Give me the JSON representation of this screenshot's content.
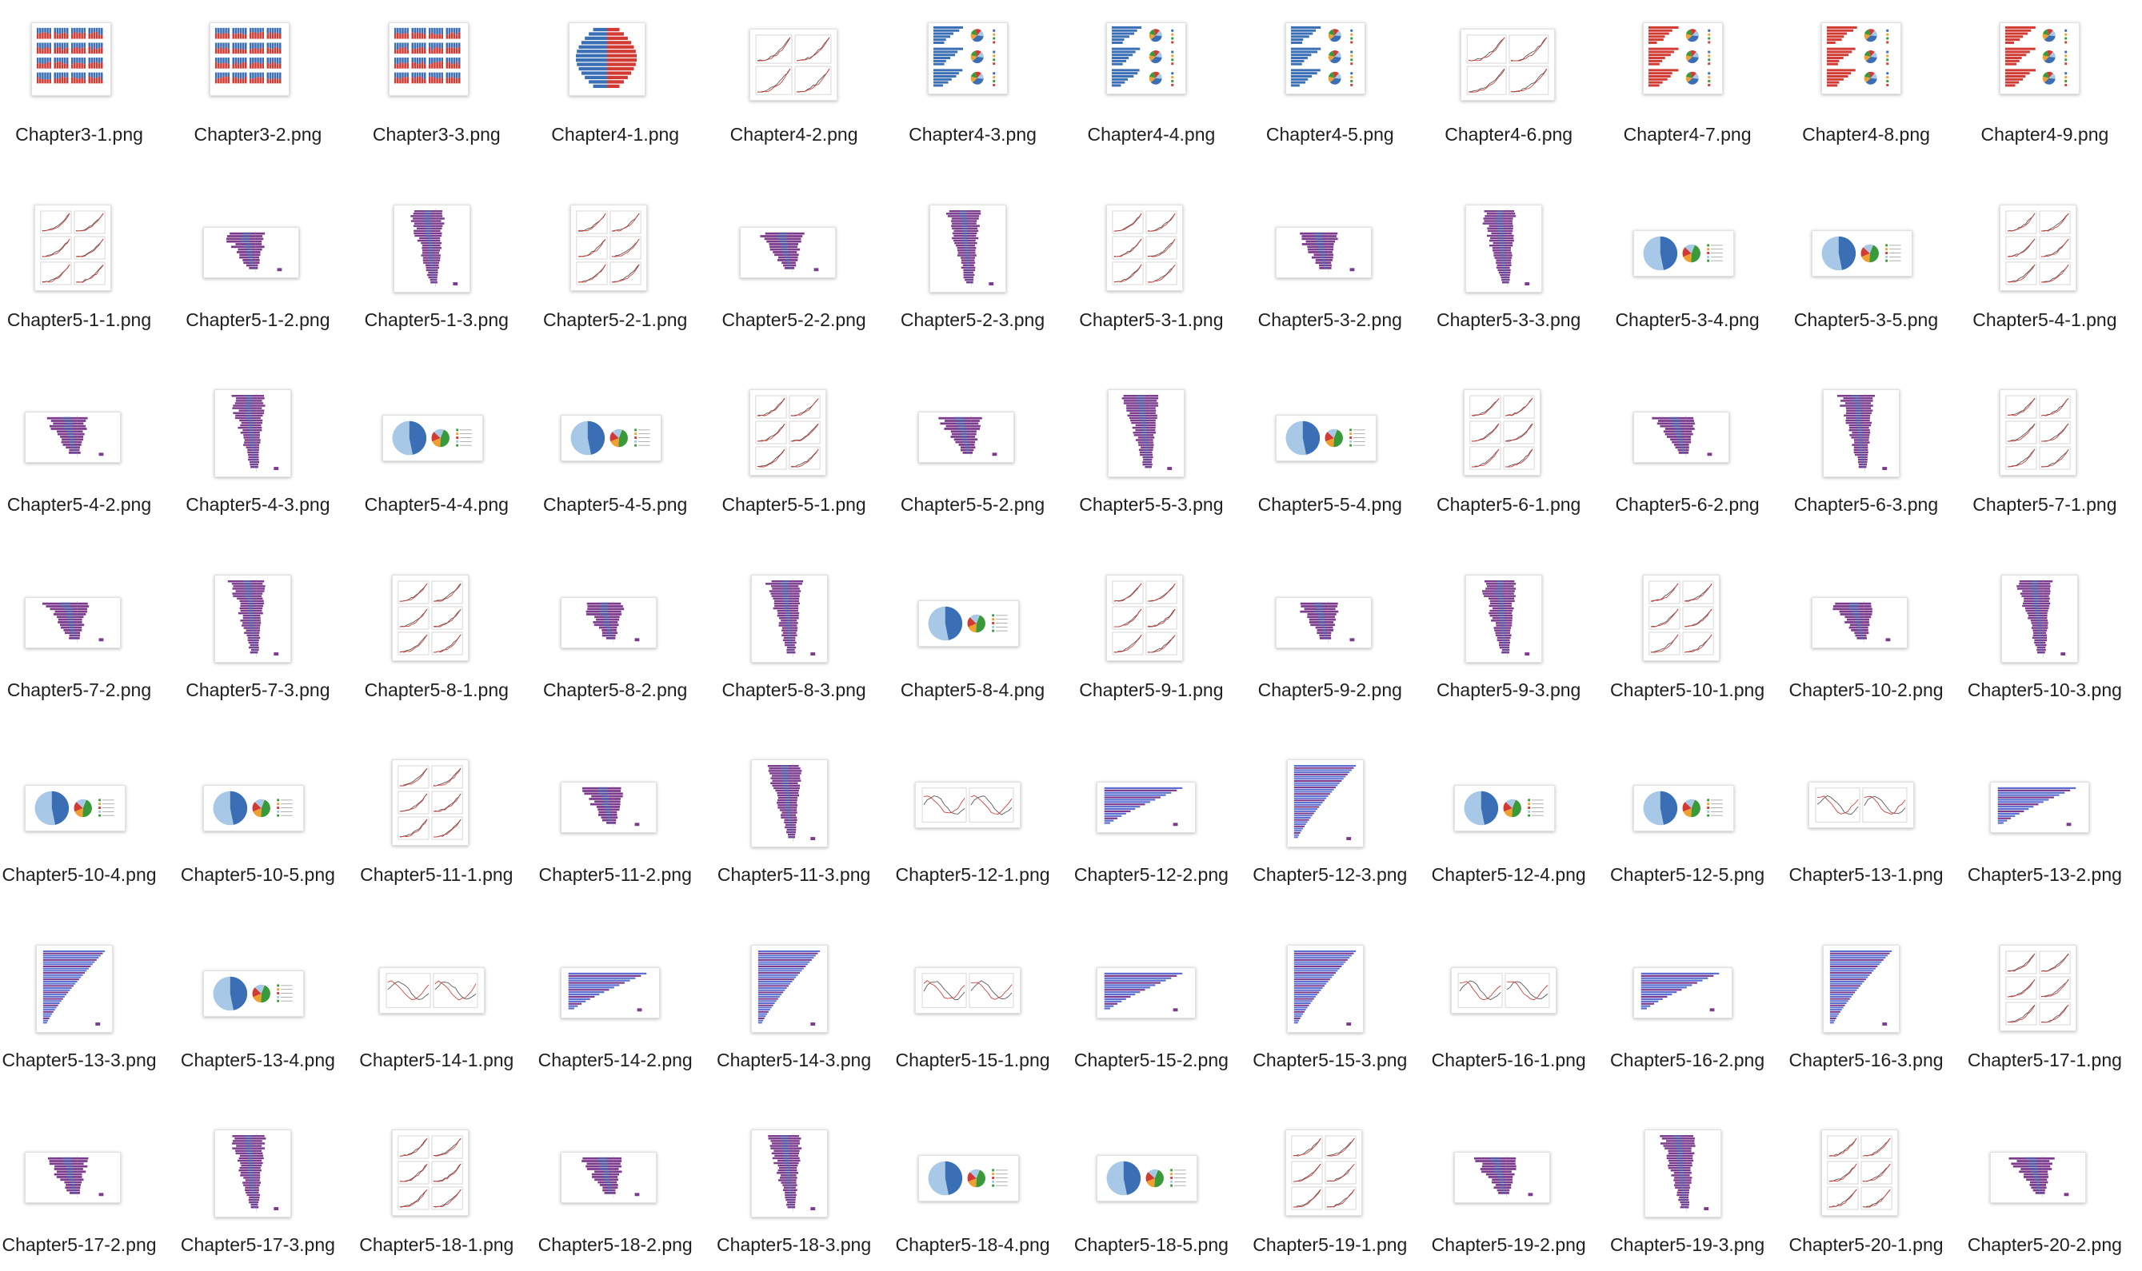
{
  "finder": {
    "files": [
      {
        "name": "Chapter3-1.png",
        "label": "Chapter3-1.png",
        "kind": "stacked"
      },
      {
        "name": "Chapter3-2.png",
        "label": "Chapter3-2.png",
        "kind": "stacked"
      },
      {
        "name": "Chapter3-3.png",
        "label": "Chapter3-3.png",
        "kind": "stacked"
      },
      {
        "name": "Chapter4-1.png",
        "label": "Chapter4-1.png",
        "kind": "pyramid-br"
      },
      {
        "name": "Chapter4-2.png",
        "label": "Chapter4-2.png",
        "kind": "lines4"
      },
      {
        "name": "Chapter4-3.png",
        "label": "Chapter4-3.png",
        "kind": "pie3-blue"
      },
      {
        "name": "Chapter4-4.png",
        "label": "Chapter4-4.png",
        "kind": "pie3-blue"
      },
      {
        "name": "Chapter4-5.png",
        "label": "Chapter4-5.png",
        "kind": "pie3-blue"
      },
      {
        "name": "Chapter4-6.png",
        "label": "Chapter4-6.png",
        "kind": "lines4wide"
      },
      {
        "name": "Chapter4-7.png",
        "label": "Chapter4-7.png",
        "kind": "pie3-red"
      },
      {
        "name": "Chapter4-8.png",
        "label": "Chapter4-8.png",
        "kind": "pie3-red"
      },
      {
        "name": "Chapter4-9.png",
        "label": "Chapter4-9.png",
        "kind": "pie3-red"
      },
      {
        "name": "Chapter5-1-1.png",
        "label": "Chapter5-1-1.png",
        "kind": "lines6"
      },
      {
        "name": "Chapter5-1-2.png",
        "label": "Chapter5-1-2.png",
        "kind": "pyrwide"
      },
      {
        "name": "Chapter5-1-3.png",
        "label": "Chapter5-1-3.png",
        "kind": "pyrtall"
      },
      {
        "name": "Chapter5-2-1.png",
        "label": "Chapter5-2-1.png",
        "kind": "lines6"
      },
      {
        "name": "Chapter5-2-2.png",
        "label": "Chapter5-2-2.png",
        "kind": "pyrwide"
      },
      {
        "name": "Chapter5-2-3.png",
        "label": "Chapter5-2-3.png",
        "kind": "pyrtall"
      },
      {
        "name": "Chapter5-3-1.png",
        "label": "Chapter5-3-1.png",
        "kind": "lines6"
      },
      {
        "name": "Chapter5-3-2.png",
        "label": "Chapter5-3-2.png",
        "kind": "pyrwide"
      },
      {
        "name": "Chapter5-3-3.png",
        "label": "Chapter5-3-3.png",
        "kind": "pyrtall"
      },
      {
        "name": "Chapter5-3-4.png",
        "label": "Chapter5-3-4.png",
        "kind": "pies2"
      },
      {
        "name": "Chapter5-3-5.png",
        "label": "Chapter5-3-5.png",
        "kind": "pies2"
      },
      {
        "name": "Chapter5-4-1.png",
        "label": "Chapter5-4-1.png",
        "kind": "lines6"
      },
      {
        "name": "Chapter5-4-2.png",
        "label": "Chapter5-4-2.png",
        "kind": "pyrwide"
      },
      {
        "name": "Chapter5-4-3.png",
        "label": "Chapter5-4-3.png",
        "kind": "pyrtall"
      },
      {
        "name": "Chapter5-4-4.png",
        "label": "Chapter5-4-4.png",
        "kind": "pies2"
      },
      {
        "name": "Chapter5-4-5.png",
        "label": "Chapter5-4-5.png",
        "kind": "pies2"
      },
      {
        "name": "Chapter5-5-1.png",
        "label": "Chapter5-5-1.png",
        "kind": "lines6"
      },
      {
        "name": "Chapter5-5-2.png",
        "label": "Chapter5-5-2.png",
        "kind": "pyrwide"
      },
      {
        "name": "Chapter5-5-3.png",
        "label": "Chapter5-5-3.png",
        "kind": "pyrtall"
      },
      {
        "name": "Chapter5-5-4.png",
        "label": "Chapter5-5-4.png",
        "kind": "pies2"
      },
      {
        "name": "Chapter5-6-1.png",
        "label": "Chapter5-6-1.png",
        "kind": "lines6"
      },
      {
        "name": "Chapter5-6-2.png",
        "label": "Chapter5-6-2.png",
        "kind": "pyrwide"
      },
      {
        "name": "Chapter5-6-3.png",
        "label": "Chapter5-6-3.png",
        "kind": "pyrtall"
      },
      {
        "name": "Chapter5-7-1.png",
        "label": "Chapter5-7-1.png",
        "kind": "lines6"
      },
      {
        "name": "Chapter5-7-2.png",
        "label": "Chapter5-7-2.png",
        "kind": "pyrwide"
      },
      {
        "name": "Chapter5-7-3.png",
        "label": "Chapter5-7-3.png",
        "kind": "pyrtall"
      },
      {
        "name": "Chapter5-8-1.png",
        "label": "Chapter5-8-1.png",
        "kind": "lines6"
      },
      {
        "name": "Chapter5-8-2.png",
        "label": "Chapter5-8-2.png",
        "kind": "pyrwide"
      },
      {
        "name": "Chapter5-8-3.png",
        "label": "Chapter5-8-3.png",
        "kind": "pyrtall"
      },
      {
        "name": "Chapter5-8-4.png",
        "label": "Chapter5-8-4.png",
        "kind": "pies2"
      },
      {
        "name": "Chapter5-9-1.png",
        "label": "Chapter5-9-1.png",
        "kind": "lines6"
      },
      {
        "name": "Chapter5-9-2.png",
        "label": "Chapter5-9-2.png",
        "kind": "pyrwide"
      },
      {
        "name": "Chapter5-9-3.png",
        "label": "Chapter5-9-3.png",
        "kind": "pyrtall"
      },
      {
        "name": "Chapter5-10-1.png",
        "label": "Chapter5-10-1.png",
        "kind": "lines6"
      },
      {
        "name": "Chapter5-10-2.png",
        "label": "Chapter5-10-2.png",
        "kind": "pyrwide"
      },
      {
        "name": "Chapter5-10-3.png",
        "label": "Chapter5-10-3.png",
        "kind": "pyrtall"
      },
      {
        "name": "Chapter5-10-4.png",
        "label": "Chapter5-10-4.png",
        "kind": "pies2"
      },
      {
        "name": "Chapter5-10-5.png",
        "label": "Chapter5-10-5.png",
        "kind": "pies2"
      },
      {
        "name": "Chapter5-11-1.png",
        "label": "Chapter5-11-1.png",
        "kind": "lines6"
      },
      {
        "name": "Chapter5-11-2.png",
        "label": "Chapter5-11-2.png",
        "kind": "pyrwide"
      },
      {
        "name": "Chapter5-11-3.png",
        "label": "Chapter5-11-3.png",
        "kind": "pyrtall"
      },
      {
        "name": "Chapter5-12-1.png",
        "label": "Chapter5-12-1.png",
        "kind": "lines2"
      },
      {
        "name": "Chapter5-12-2.png",
        "label": "Chapter5-12-2.png",
        "kind": "hbarwide"
      },
      {
        "name": "Chapter5-12-3.png",
        "label": "Chapter5-12-3.png",
        "kind": "hbartall"
      },
      {
        "name": "Chapter5-12-4.png",
        "label": "Chapter5-12-4.png",
        "kind": "pies2"
      },
      {
        "name": "Chapter5-12-5.png",
        "label": "Chapter5-12-5.png",
        "kind": "pies2"
      },
      {
        "name": "Chapter5-13-1.png",
        "label": "Chapter5-13-1.png",
        "kind": "lines2"
      },
      {
        "name": "Chapter5-13-2.png",
        "label": "Chapter5-13-2.png",
        "kind": "hbarwide"
      },
      {
        "name": "Chapter5-13-3.png",
        "label": "Chapter5-13-3.png",
        "kind": "hbartall"
      },
      {
        "name": "Chapter5-13-4.png",
        "label": "Chapter5-13-4.png",
        "kind": "pies2"
      },
      {
        "name": "Chapter5-14-1.png",
        "label": "Chapter5-14-1.png",
        "kind": "lines2"
      },
      {
        "name": "Chapter5-14-2.png",
        "label": "Chapter5-14-2.png",
        "kind": "hbarwide"
      },
      {
        "name": "Chapter5-14-3.png",
        "label": "Chapter5-14-3.png",
        "kind": "hbartall"
      },
      {
        "name": "Chapter5-15-1.png",
        "label": "Chapter5-15-1.png",
        "kind": "lines2"
      },
      {
        "name": "Chapter5-15-2.png",
        "label": "Chapter5-15-2.png",
        "kind": "hbarwide"
      },
      {
        "name": "Chapter5-15-3.png",
        "label": "Chapter5-15-3.png",
        "kind": "hbartall"
      },
      {
        "name": "Chapter5-16-1.png",
        "label": "Chapter5-16-1.png",
        "kind": "lines2"
      },
      {
        "name": "Chapter5-16-2.png",
        "label": "Chapter5-16-2.png",
        "kind": "hbarwide"
      },
      {
        "name": "Chapter5-16-3.png",
        "label": "Chapter5-16-3.png",
        "kind": "hbartall"
      },
      {
        "name": "Chapter5-17-1.png",
        "label": "Chapter5-17-1.png",
        "kind": "lines6"
      },
      {
        "name": "Chapter5-17-2.png",
        "label": "Chapter5-17-2.png",
        "kind": "pyrwide"
      },
      {
        "name": "Chapter5-17-3.png",
        "label": "Chapter5-17-3.png",
        "kind": "pyrtall"
      },
      {
        "name": "Chapter5-18-1.png",
        "label": "Chapter5-18-1.png",
        "kind": "lines6"
      },
      {
        "name": "Chapter5-18-2.png",
        "label": "Chapter5-18-2.png",
        "kind": "pyrwide"
      },
      {
        "name": "Chapter5-18-3.png",
        "label": "Chapter5-18-3.png",
        "kind": "pyrtall"
      },
      {
        "name": "Chapter5-18-4.png",
        "label": "Chapter5-18-4.png",
        "kind": "pies2"
      },
      {
        "name": "Chapter5-18-5.png",
        "label": "Chapter5-18-5.png",
        "kind": "pies2"
      },
      {
        "name": "Chapter5-19-1.png",
        "label": "Chapter5-19-1.png",
        "kind": "lines6"
      },
      {
        "name": "Chapter5-19-2.png",
        "label": "Chapter5-19-2.png",
        "kind": "pyrwide"
      },
      {
        "name": "Chapter5-19-3.png",
        "label": "Chapter5-19-3.png",
        "kind": "pyrtall"
      },
      {
        "name": "Chapter5-20-1.png",
        "label": "Chapter5-20-1.png",
        "kind": "lines6"
      },
      {
        "name": "Chapter5-20-2.png",
        "label": "Chapter5-20-2.png",
        "kind": "pyrwide"
      }
    ]
  },
  "colors": {
    "blue": "#3a6fb5",
    "red": "#d23b34",
    "purple": "#7b3a8c",
    "lightblue": "#a8c8e8",
    "green": "#3a9a3a",
    "orange": "#f0a030",
    "gridline": "#cccccc",
    "line": "#555555"
  }
}
